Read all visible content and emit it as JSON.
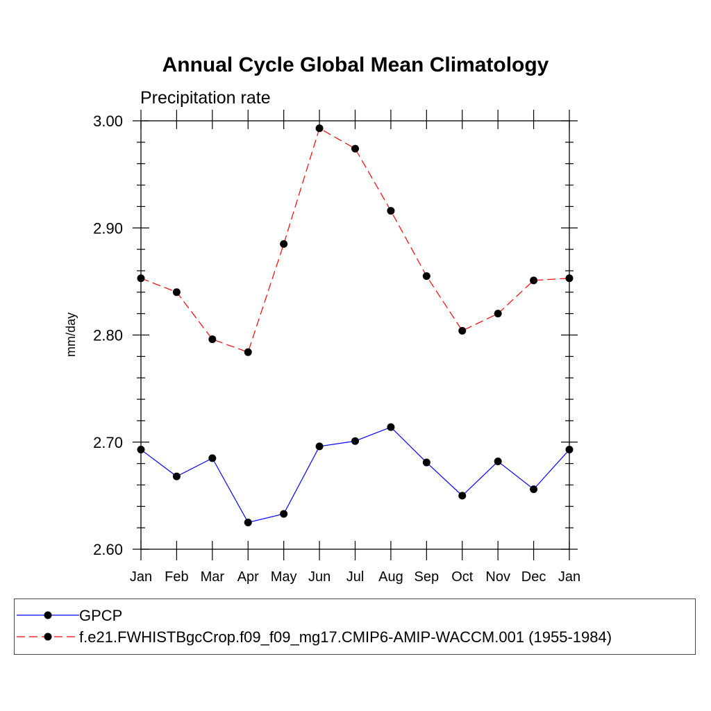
{
  "chart_data": {
    "type": "line",
    "title": "Annual Cycle Global Mean Climatology",
    "subtitle": "Precipitation rate",
    "xlabel": "",
    "ylabel": "mm/day",
    "ylim": [
      2.6,
      3.0
    ],
    "yticks": [
      "2.60",
      "2.70",
      "2.80",
      "2.90",
      "3.00"
    ],
    "categories": [
      "Jan",
      "Feb",
      "Mar",
      "Apr",
      "May",
      "Jun",
      "Jul",
      "Aug",
      "Sep",
      "Oct",
      "Nov",
      "Dec",
      "Jan"
    ],
    "grid": false,
    "legend_position": "bottom",
    "series": [
      {
        "name": "GPCP",
        "color": "#0000ff",
        "dash": "solid",
        "values": [
          2.693,
          2.668,
          2.685,
          2.625,
          2.633,
          2.696,
          2.701,
          2.714,
          2.681,
          2.65,
          2.682,
          2.656,
          2.693
        ]
      },
      {
        "name": "f.e21.FWHISTBgcCrop.f09_f09_mg17.CMIP6-AMIP-WACCM.001 (1955-1984)",
        "color": "#ff0000",
        "dash": "dashed",
        "values": [
          2.853,
          2.84,
          2.796,
          2.784,
          2.885,
          2.993,
          2.974,
          2.916,
          2.855,
          2.804,
          2.82,
          2.851,
          2.853
        ]
      }
    ]
  }
}
